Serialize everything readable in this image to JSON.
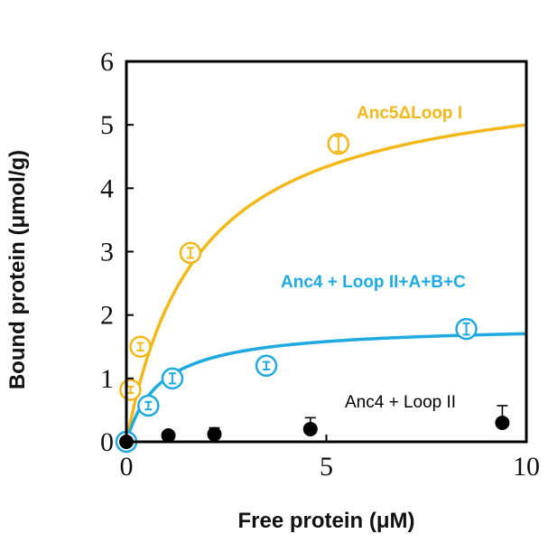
{
  "chart_data": {
    "type": "scatter",
    "title": "",
    "xlabel": "Free protein (μM)",
    "ylabel": "Bound protein (μmol/g)",
    "xlim": [
      0,
      10
    ],
    "ylim": [
      0,
      6
    ],
    "xticks": [
      0,
      5,
      10
    ],
    "yticks": [
      0,
      1,
      2,
      3,
      4,
      5,
      6
    ],
    "grid": false,
    "legend": "none",
    "series": [
      {
        "name": "Anc5ΔLoop I",
        "color": "#F2B81A",
        "marker": "open-circle",
        "points": [
          {
            "x": 0.0,
            "y": 0.0,
            "err": 0.05
          },
          {
            "x": 0.1,
            "y": 0.82,
            "err": 0.05
          },
          {
            "x": 0.35,
            "y": 1.5,
            "err": 0.06
          },
          {
            "x": 1.6,
            "y": 2.98,
            "err": 0.08
          },
          {
            "x": 5.3,
            "y": 4.7,
            "err": 0.12
          }
        ],
        "fit": {
          "model": "langmuir",
          "bmax": 5.9,
          "kd": 1.8
        }
      },
      {
        "name": "Anc4 + Loop II+A+B+C",
        "color": "#1FA9E1",
        "marker": "open-circle",
        "points": [
          {
            "x": 0.0,
            "y": 0.0,
            "err": 0.03
          },
          {
            "x": 0.55,
            "y": 0.57,
            "err": 0.06
          },
          {
            "x": 1.15,
            "y": 1.0,
            "err": 0.08
          },
          {
            "x": 3.5,
            "y": 1.2,
            "err": 0.06
          },
          {
            "x": 8.5,
            "y": 1.78,
            "err": 0.09
          }
        ],
        "fit": {
          "model": "langmuir",
          "bmax": 1.85,
          "kd": 0.85
        }
      },
      {
        "name": "Anc4 + Loop II",
        "color": "#000000",
        "marker": "filled-circle",
        "points": [
          {
            "x": 0.0,
            "y": 0.0,
            "err": 0.0
          },
          {
            "x": 1.05,
            "y": 0.1,
            "err": 0.0
          },
          {
            "x": 2.2,
            "y": 0.12,
            "err": 0.1
          },
          {
            "x": 4.6,
            "y": 0.2,
            "err": 0.18
          },
          {
            "x": 9.4,
            "y": 0.3,
            "err": 0.27
          }
        ]
      }
    ]
  }
}
